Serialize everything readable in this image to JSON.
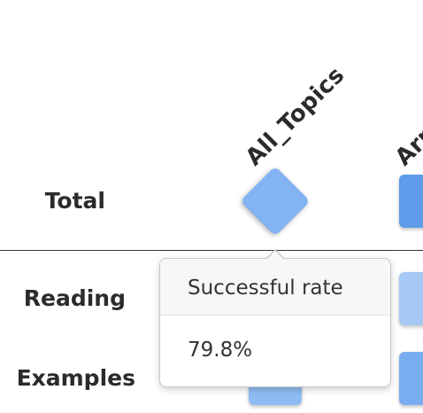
{
  "columns": [
    {
      "label": "All_Topics"
    },
    {
      "label": "Arra"
    }
  ],
  "rows": [
    {
      "label": "Total"
    },
    {
      "label": "Reading"
    },
    {
      "label": "Examples"
    }
  ],
  "tooltip": {
    "title": "Successful rate",
    "value": "79.8%"
  },
  "colors": {
    "diamond_cell": "#82b3f2",
    "total_arrays_cell": "#5f9ce9",
    "reading_arrays_cell": "#a6c8f5",
    "examples_arrays_cell": "#78aef0",
    "examples_all_topics_cell": "#8fbcf3"
  }
}
